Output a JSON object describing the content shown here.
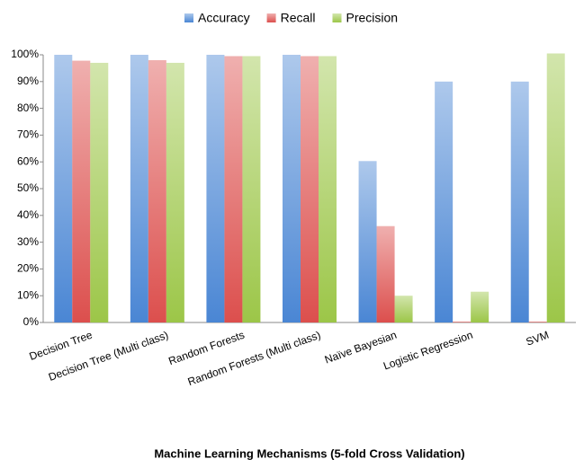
{
  "chart_data": {
    "type": "bar",
    "xlabel": "Machine Learning Mechanisms (5-fold Cross Validation)",
    "categories": [
      "Decision Tree",
      "Decision Tree (Multi class)",
      "Random Forests",
      "Random Forests (Multi class)",
      "Naïve Bayesian",
      "Logistic Regression",
      "SVM"
    ],
    "series": [
      {
        "name": "Accuracy",
        "color": "#4a86d4",
        "values": [
          100,
          100,
          100,
          100,
          60.3,
          90,
          90
        ]
      },
      {
        "name": "Recall",
        "color": "#dc4f4d",
        "values": [
          97.8,
          98,
          99.5,
          99.5,
          36,
          0.3,
          0.3
        ]
      },
      {
        "name": "Precision",
        "color": "#9cc648",
        "values": [
          97,
          97,
          99.5,
          99.5,
          10,
          11.5,
          100.5
        ]
      }
    ],
    "ylim": [
      0,
      100
    ],
    "yticks": [
      {
        "value": 0,
        "label": "0%"
      },
      {
        "value": 10,
        "label": "10%"
      },
      {
        "value": 20,
        "label": "20%"
      },
      {
        "value": 30,
        "label": "30%"
      },
      {
        "value": 40,
        "label": "40%"
      },
      {
        "value": 50,
        "label": "50%"
      },
      {
        "value": 60,
        "label": "60%"
      },
      {
        "value": 70,
        "label": "70%"
      },
      {
        "value": 80,
        "label": "80%"
      },
      {
        "value": 90,
        "label": "90%"
      },
      {
        "value": 100,
        "label": "100%"
      }
    ],
    "grid": false,
    "legend": "top"
  }
}
